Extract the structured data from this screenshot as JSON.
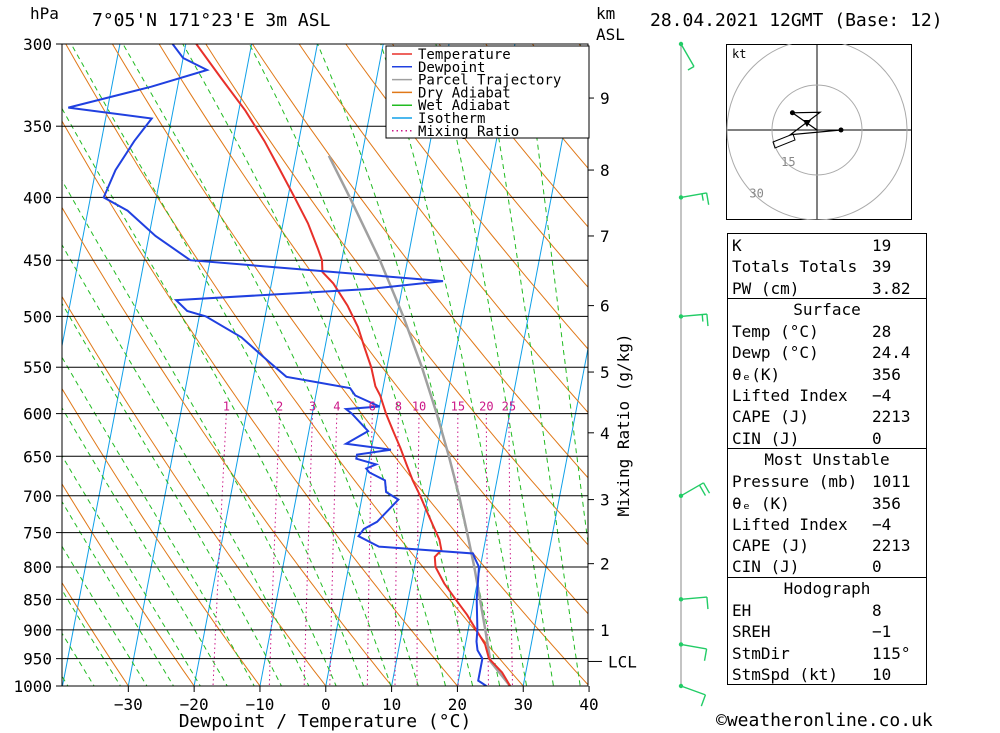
{
  "header": {
    "unit_p": "hPa",
    "location": "7°05'N  171°23'E  3m  ASL",
    "unit_km": "km",
    "unit_asl": "ASL",
    "datetime": "28.04.2021  12GMT  (Base: 12)"
  },
  "footer": {
    "credit": "©weatheronline.co.uk"
  },
  "chart_data": {
    "type": "line",
    "subtype": "skew-t log-p diagram",
    "xlabel": "Dewpoint / Temperature (°C)",
    "ylabel": "hPa",
    "y2label": "Mixing Ratio (g/kg)",
    "xlim": [
      -40,
      40
    ],
    "ylim": [
      1000,
      300
    ],
    "y_scale": "log",
    "x_ticks": [
      -30,
      -20,
      -10,
      0,
      10,
      20,
      30,
      40
    ],
    "pressure_ticks": [
      300,
      350,
      400,
      450,
      500,
      550,
      600,
      650,
      700,
      750,
      800,
      850,
      900,
      950,
      1000
    ],
    "km_ticks": [
      {
        "label": "1",
        "p": 900
      },
      {
        "label": "2",
        "p": 795
      },
      {
        "label": "3",
        "p": 705
      },
      {
        "label": "4",
        "p": 622
      },
      {
        "label": "5",
        "p": 555
      },
      {
        "label": "6",
        "p": 490
      },
      {
        "label": "7",
        "p": 430
      },
      {
        "label": "8",
        "p": 380
      },
      {
        "label": "9",
        "p": 332
      }
    ],
    "lcl": {
      "label": "LCL",
      "p": 955
    },
    "mixing_ratio_labels": [
      "1",
      "2",
      "3",
      "4",
      "6",
      "8",
      "10",
      "15",
      "20",
      "25"
    ],
    "legend": [
      "Temperature",
      "Dewpoint",
      "Parcel Trajectory",
      "Dry Adiabat",
      "Wet Adiabat",
      "Isotherm",
      "Mixing Ratio"
    ],
    "legend_position": "top-right",
    "colors": {
      "temperature": "#e8302a",
      "dewpoint": "#2040e0",
      "parcel": "#a0a0a0",
      "dry_adiabat": "#e07818",
      "wet_adiabat": "#22bb22",
      "isotherm": "#10a0e8",
      "mixing_ratio": "#cc1888"
    },
    "series": [
      {
        "name": "Temperature",
        "points": [
          [
            1000,
            28.0
          ],
          [
            975,
            26.4
          ],
          [
            950,
            24.0
          ],
          [
            925,
            23.0
          ],
          [
            900,
            21.2
          ],
          [
            875,
            19.4
          ],
          [
            850,
            17.2
          ],
          [
            825,
            15.0
          ],
          [
            800,
            13.2
          ],
          [
            785,
            12.8
          ],
          [
            775,
            13.6
          ],
          [
            760,
            13.0
          ],
          [
            740,
            11.6
          ],
          [
            720,
            10.2
          ],
          [
            700,
            8.8
          ],
          [
            680,
            7.2
          ],
          [
            660,
            5.8
          ],
          [
            640,
            4.4
          ],
          [
            620,
            2.8
          ],
          [
            600,
            1.2
          ],
          [
            580,
            -0.2
          ],
          [
            570,
            -1.2
          ],
          [
            550,
            -2.4
          ],
          [
            530,
            -4.0
          ],
          [
            510,
            -5.6
          ],
          [
            490,
            -7.8
          ],
          [
            470,
            -10.6
          ],
          [
            460,
            -12.6
          ],
          [
            450,
            -13.0
          ],
          [
            440,
            -14.0
          ],
          [
            420,
            -16.2
          ],
          [
            400,
            -19.0
          ],
          [
            380,
            -22.0
          ],
          [
            360,
            -25.2
          ],
          [
            340,
            -29.0
          ],
          [
            320,
            -33.6
          ],
          [
            300,
            -38.4
          ]
        ]
      },
      {
        "name": "Dewpoint",
        "points": [
          [
            1000,
            24.4
          ],
          [
            990,
            23.0
          ],
          [
            950,
            23.0
          ],
          [
            935,
            22.0
          ],
          [
            920,
            21.6
          ],
          [
            900,
            21.4
          ],
          [
            850,
            20.4
          ],
          [
            800,
            19.8
          ],
          [
            788,
            19.0
          ],
          [
            780,
            18.5
          ],
          [
            770,
            4.0
          ],
          [
            755,
            0.6
          ],
          [
            745,
            1.2
          ],
          [
            735,
            3.0
          ],
          [
            705,
            5.6
          ],
          [
            695,
            3.5
          ],
          [
            680,
            3.0
          ],
          [
            670,
            0.4
          ],
          [
            665,
            -0.2
          ],
          [
            660,
            1.2
          ],
          [
            653,
            -2.0
          ],
          [
            648,
            -2.0
          ],
          [
            642,
            3.0
          ],
          [
            635,
            -4.0
          ],
          [
            620,
            -1.0
          ],
          [
            600,
            -4.0
          ],
          [
            595,
            -5.0
          ],
          [
            592,
            0.0
          ],
          [
            580,
            -4.0
          ],
          [
            572,
            -5.0
          ],
          [
            560,
            -15.0
          ],
          [
            545,
            -18.0
          ],
          [
            520,
            -23.0
          ],
          [
            500,
            -29.0
          ],
          [
            495,
            -32.0
          ],
          [
            485,
            -34.0
          ],
          [
            475,
            -5.0
          ],
          [
            468,
            6.0
          ],
          [
            450,
            -33.0
          ],
          [
            430,
            -39.0
          ],
          [
            410,
            -44.0
          ],
          [
            400,
            -48.0
          ],
          [
            380,
            -47.0
          ],
          [
            360,
            -45.0
          ],
          [
            345,
            -43.0
          ],
          [
            338,
            -56.0
          ],
          [
            325,
            -44.0
          ],
          [
            315,
            -36.0
          ],
          [
            308,
            -40.0
          ],
          [
            300,
            -42.0
          ]
        ]
      },
      {
        "name": "Parcel Trajectory",
        "points": [
          [
            1000,
            28.0
          ],
          [
            955,
            24.3
          ],
          [
            900,
            22.6
          ],
          [
            850,
            20.9
          ],
          [
            800,
            19.1
          ],
          [
            750,
            17.0
          ],
          [
            700,
            14.7
          ],
          [
            650,
            12.0
          ],
          [
            600,
            8.9
          ],
          [
            550,
            5.3
          ],
          [
            500,
            1.0
          ],
          [
            450,
            -4.2
          ],
          [
            400,
            -10.6
          ],
          [
            370,
            -15.0
          ]
        ]
      }
    ]
  },
  "hodograph": {
    "unit": "kt",
    "rings": [
      "15",
      "30",
      "45"
    ],
    "trace_deg_kt": [
      [
        125,
        10
      ],
      [
        190,
        6
      ],
      [
        80,
        9
      ],
      [
        270,
        8
      ]
    ]
  },
  "wind_barbs": [
    {
      "p": 300,
      "dir": 150,
      "kt": 5
    },
    {
      "p": 400,
      "dir": 80,
      "kt": 15
    },
    {
      "p": 500,
      "dir": 85,
      "kt": 15
    },
    {
      "p": 700,
      "dir": 60,
      "kt": 20
    },
    {
      "p": 850,
      "dir": 85,
      "kt": 10
    },
    {
      "p": 925,
      "dir": 100,
      "kt": 10
    },
    {
      "p": 1000,
      "dir": 110,
      "kt": 10
    }
  ],
  "indices": {
    "general": [
      {
        "label": "K",
        "value": "19"
      },
      {
        "label": "Totals Totals",
        "value": "39"
      },
      {
        "label": "PW (cm)",
        "value": "3.82"
      }
    ],
    "surface_title": "Surface",
    "surface": [
      {
        "label": "Temp (°C)",
        "value": "28"
      },
      {
        "label": "Dewp (°C)",
        "value": "24.4"
      },
      {
        "label": "θₑ(K)",
        "value": "356"
      },
      {
        "label": "Lifted Index",
        "value": "-4"
      },
      {
        "label": "CAPE (J)",
        "value": "2213"
      },
      {
        "label": "CIN (J)",
        "value": "0"
      }
    ],
    "unstable_title": "Most Unstable",
    "unstable": [
      {
        "label": "Pressure (mb)",
        "value": "1011"
      },
      {
        "label": "θₑ (K)",
        "value": "356"
      },
      {
        "label": "Lifted Index",
        "value": "-4"
      },
      {
        "label": "CAPE (J)",
        "value": "2213"
      },
      {
        "label": "CIN (J)",
        "value": "0"
      }
    ],
    "hodograph_title": "Hodograph",
    "hodo": [
      {
        "label": "EH",
        "value": "8"
      },
      {
        "label": "SREH",
        "value": "-1"
      },
      {
        "label": "StmDir",
        "value": "115°"
      },
      {
        "label": "StmSpd (kt)",
        "value": "10"
      }
    ]
  }
}
